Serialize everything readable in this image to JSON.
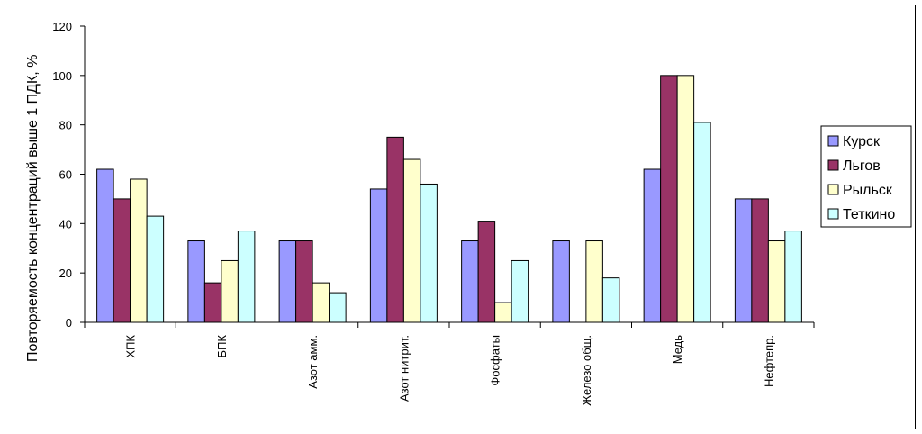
{
  "chart_data": {
    "type": "bar",
    "title": "",
    "xlabel": "",
    "ylabel": "Повторяемость концентраций выше 1 ПДК, %",
    "ylim": [
      0,
      120
    ],
    "yticks": [
      "0",
      "20",
      "40",
      "60",
      "80",
      "100",
      "120"
    ],
    "grid": false,
    "legend_position": "right",
    "categories": [
      "ХПК",
      "БПК",
      "Азот амм.",
      "Азот нитрит.",
      "Фосфаты",
      "Железо общ.",
      "Медь",
      "Нефтепр."
    ],
    "series": [
      {
        "name": "Курск",
        "color": "#9999FF",
        "values": [
          62,
          33,
          33,
          54,
          33,
          33,
          62,
          50
        ]
      },
      {
        "name": "Льгов",
        "color": "#993366",
        "values": [
          50,
          16,
          33,
          75,
          41,
          0,
          100,
          50
        ]
      },
      {
        "name": "Рыльск",
        "color": "#FFFFCC",
        "values": [
          58,
          25,
          16,
          66,
          8,
          33,
          100,
          33
        ]
      },
      {
        "name": "Теткино",
        "color": "#CCFFFF",
        "values": [
          43,
          37,
          12,
          56,
          25,
          18,
          81,
          37
        ]
      }
    ]
  }
}
